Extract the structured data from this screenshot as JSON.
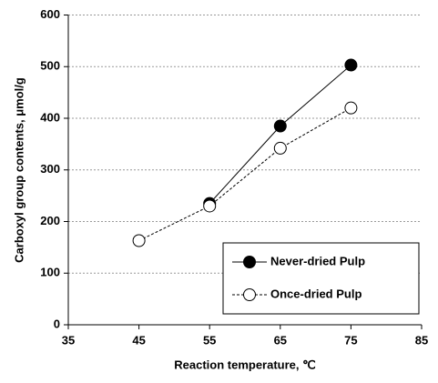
{
  "chart_data": {
    "type": "line",
    "xlabel": "Reaction temperature, ℃",
    "ylabel": "Carboxyl  group contents, μmol/g",
    "xlim": [
      35,
      85
    ],
    "xticks": [
      35,
      45,
      55,
      65,
      75,
      85
    ],
    "ylim": [
      0,
      600
    ],
    "yticks": [
      0,
      100,
      200,
      300,
      400,
      500,
      600
    ],
    "grid": true,
    "legend": "lower right",
    "series": [
      {
        "name": "Never-dried Pulp",
        "color": "#000000",
        "line_style": "solid",
        "marker_filled": true,
        "x": [
          55,
          65,
          75
        ],
        "values": [
          235,
          385,
          503
        ]
      },
      {
        "name": "Once-dried Pulp",
        "color": "#000000",
        "line_style": "dashed",
        "marker_filled": false,
        "x": [
          45,
          55,
          65,
          75
        ],
        "values": [
          163,
          230,
          342,
          420
        ]
      }
    ]
  }
}
